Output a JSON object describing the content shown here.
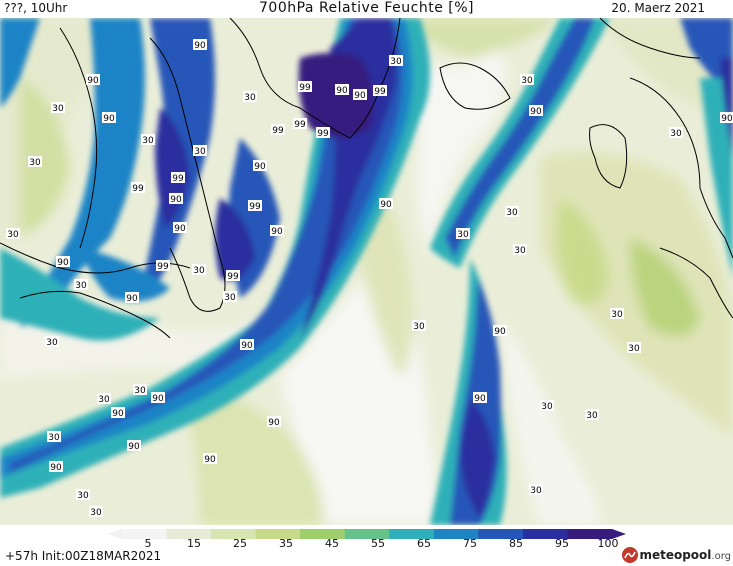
{
  "header": {
    "left": "???, 10Uhr",
    "title": "700hPa Relative Feuchte [%]",
    "date": "20. Maerz 2021"
  },
  "footer": {
    "run_info": "+57h Init:00Z18MAR2021",
    "logo_name": "meteopool",
    "logo_tld": ".org"
  },
  "colorbar": {
    "ticks": [
      "5",
      "15",
      "25",
      "35",
      "45",
      "55",
      "65",
      "75",
      "85",
      "95",
      "100"
    ],
    "colors": [
      "#f4f4f4",
      "#e6ebd8",
      "#d9e4b4",
      "#c6da88",
      "#9fcf69",
      "#63c38a",
      "#2fb0b8",
      "#1f84c6",
      "#2556b8",
      "#2b2e9f",
      "#351c7e"
    ]
  },
  "map": {
    "labels": [
      {
        "text": "90"
      },
      {
        "text": "99"
      },
      {
        "text": "90"
      },
      {
        "text": "99"
      },
      {
        "text": "30"
      },
      {
        "text": "99"
      },
      {
        "text": "99"
      },
      {
        "text": "30"
      },
      {
        "text": "90"
      },
      {
        "text": "30"
      },
      {
        "text": "90"
      },
      {
        "text": "30"
      },
      {
        "text": "30"
      },
      {
        "text": "90"
      },
      {
        "text": "99"
      },
      {
        "text": "99"
      },
      {
        "text": "99"
      },
      {
        "text": "90"
      },
      {
        "text": "99"
      },
      {
        "text": "90"
      },
      {
        "text": "90"
      },
      {
        "text": "30"
      },
      {
        "text": "99"
      },
      {
        "text": "99"
      },
      {
        "text": "90"
      },
      {
        "text": "30"
      },
      {
        "text": "90"
      },
      {
        "text": "30"
      },
      {
        "text": "90"
      },
      {
        "text": "90"
      },
      {
        "text": "30"
      },
      {
        "text": "90"
      },
      {
        "text": "30"
      },
      {
        "text": "90"
      },
      {
        "text": "90"
      },
      {
        "text": "30"
      },
      {
        "text": "30"
      },
      {
        "text": "30"
      },
      {
        "text": "90"
      },
      {
        "text": "30"
      },
      {
        "text": "30"
      },
      {
        "text": "90"
      },
      {
        "text": "90"
      },
      {
        "text": "30"
      },
      {
        "text": "30"
      },
      {
        "text": "30"
      },
      {
        "text": "90"
      },
      {
        "text": "30"
      },
      {
        "text": "30"
      },
      {
        "text": "90"
      },
      {
        "text": "90"
      },
      {
        "text": "90"
      },
      {
        "text": "30"
      },
      {
        "text": "30"
      },
      {
        "text": "30"
      },
      {
        "text": "30"
      },
      {
        "text": "30"
      },
      {
        "text": "90"
      },
      {
        "text": "30"
      },
      {
        "text": "30"
      }
    ]
  }
}
